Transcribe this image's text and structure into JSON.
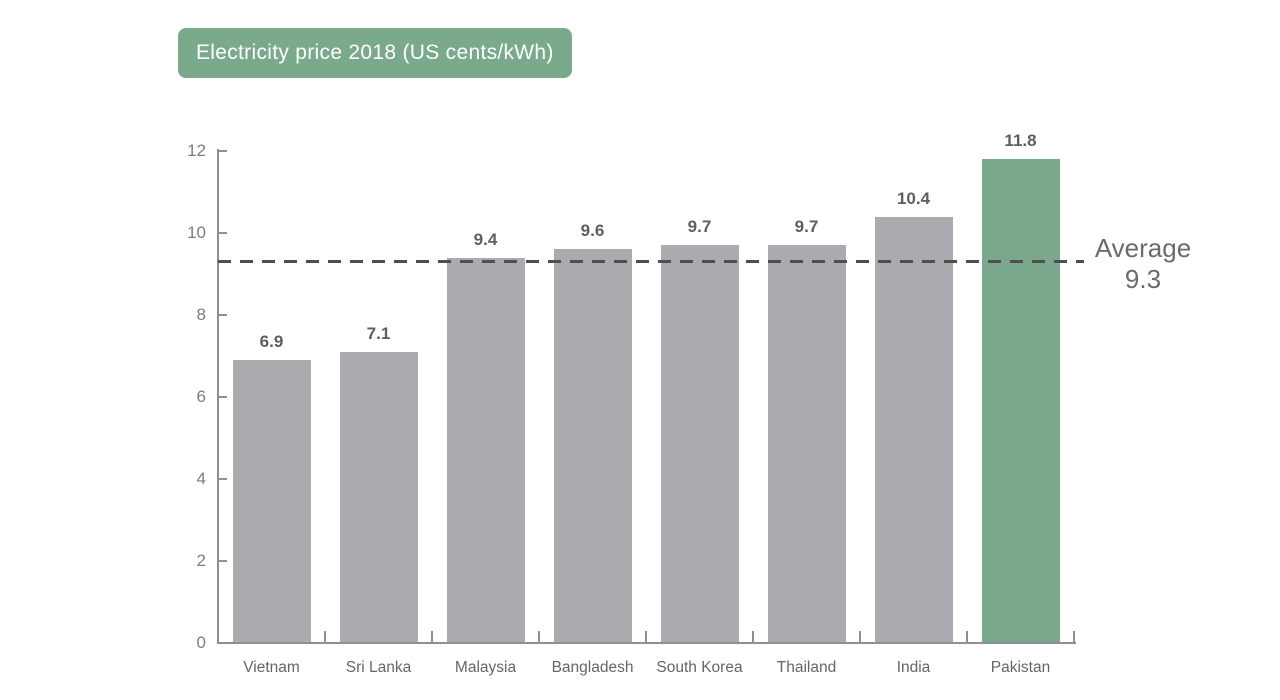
{
  "chart": {
    "title_badge": "Electricity price 2018 (US cents/kWh)"
  },
  "chart_data": {
    "type": "bar",
    "title": "Electricity price 2018 (US cents/kWh)",
    "categories": [
      "Vietnam",
      "Sri Lanka",
      "Malaysia",
      "Bangladesh",
      "South Korea",
      "Thailand",
      "India",
      "Pakistan"
    ],
    "values": [
      6.9,
      7.1,
      9.4,
      9.6,
      9.7,
      9.7,
      10.4,
      11.8
    ],
    "value_labels": [
      "6.9",
      "7.1",
      "9.4",
      "9.6",
      "9.7",
      "9.7",
      "10.4",
      "11.8"
    ],
    "highlight_category": "Pakistan",
    "average": {
      "label": "Average",
      "value": 9.3,
      "value_label": "9.3"
    },
    "xlabel": "",
    "ylabel": "",
    "ylim": [
      0,
      12
    ],
    "yticks": [
      0,
      2,
      4,
      6,
      8,
      10,
      12
    ],
    "grid": false,
    "legend": "none",
    "colors": {
      "bar": "#ababaf",
      "highlight_bar": "#79a88c",
      "title_badge_bg": "#7aa98c",
      "title_badge_text": "#ffffff",
      "axis": "#8f8f8f",
      "tick_label": "#7d7d7d",
      "category_label": "#666666",
      "value_label": "#5e5e5e",
      "average_line": "#4f4f4f",
      "average_text": "#6b6b6b"
    }
  }
}
